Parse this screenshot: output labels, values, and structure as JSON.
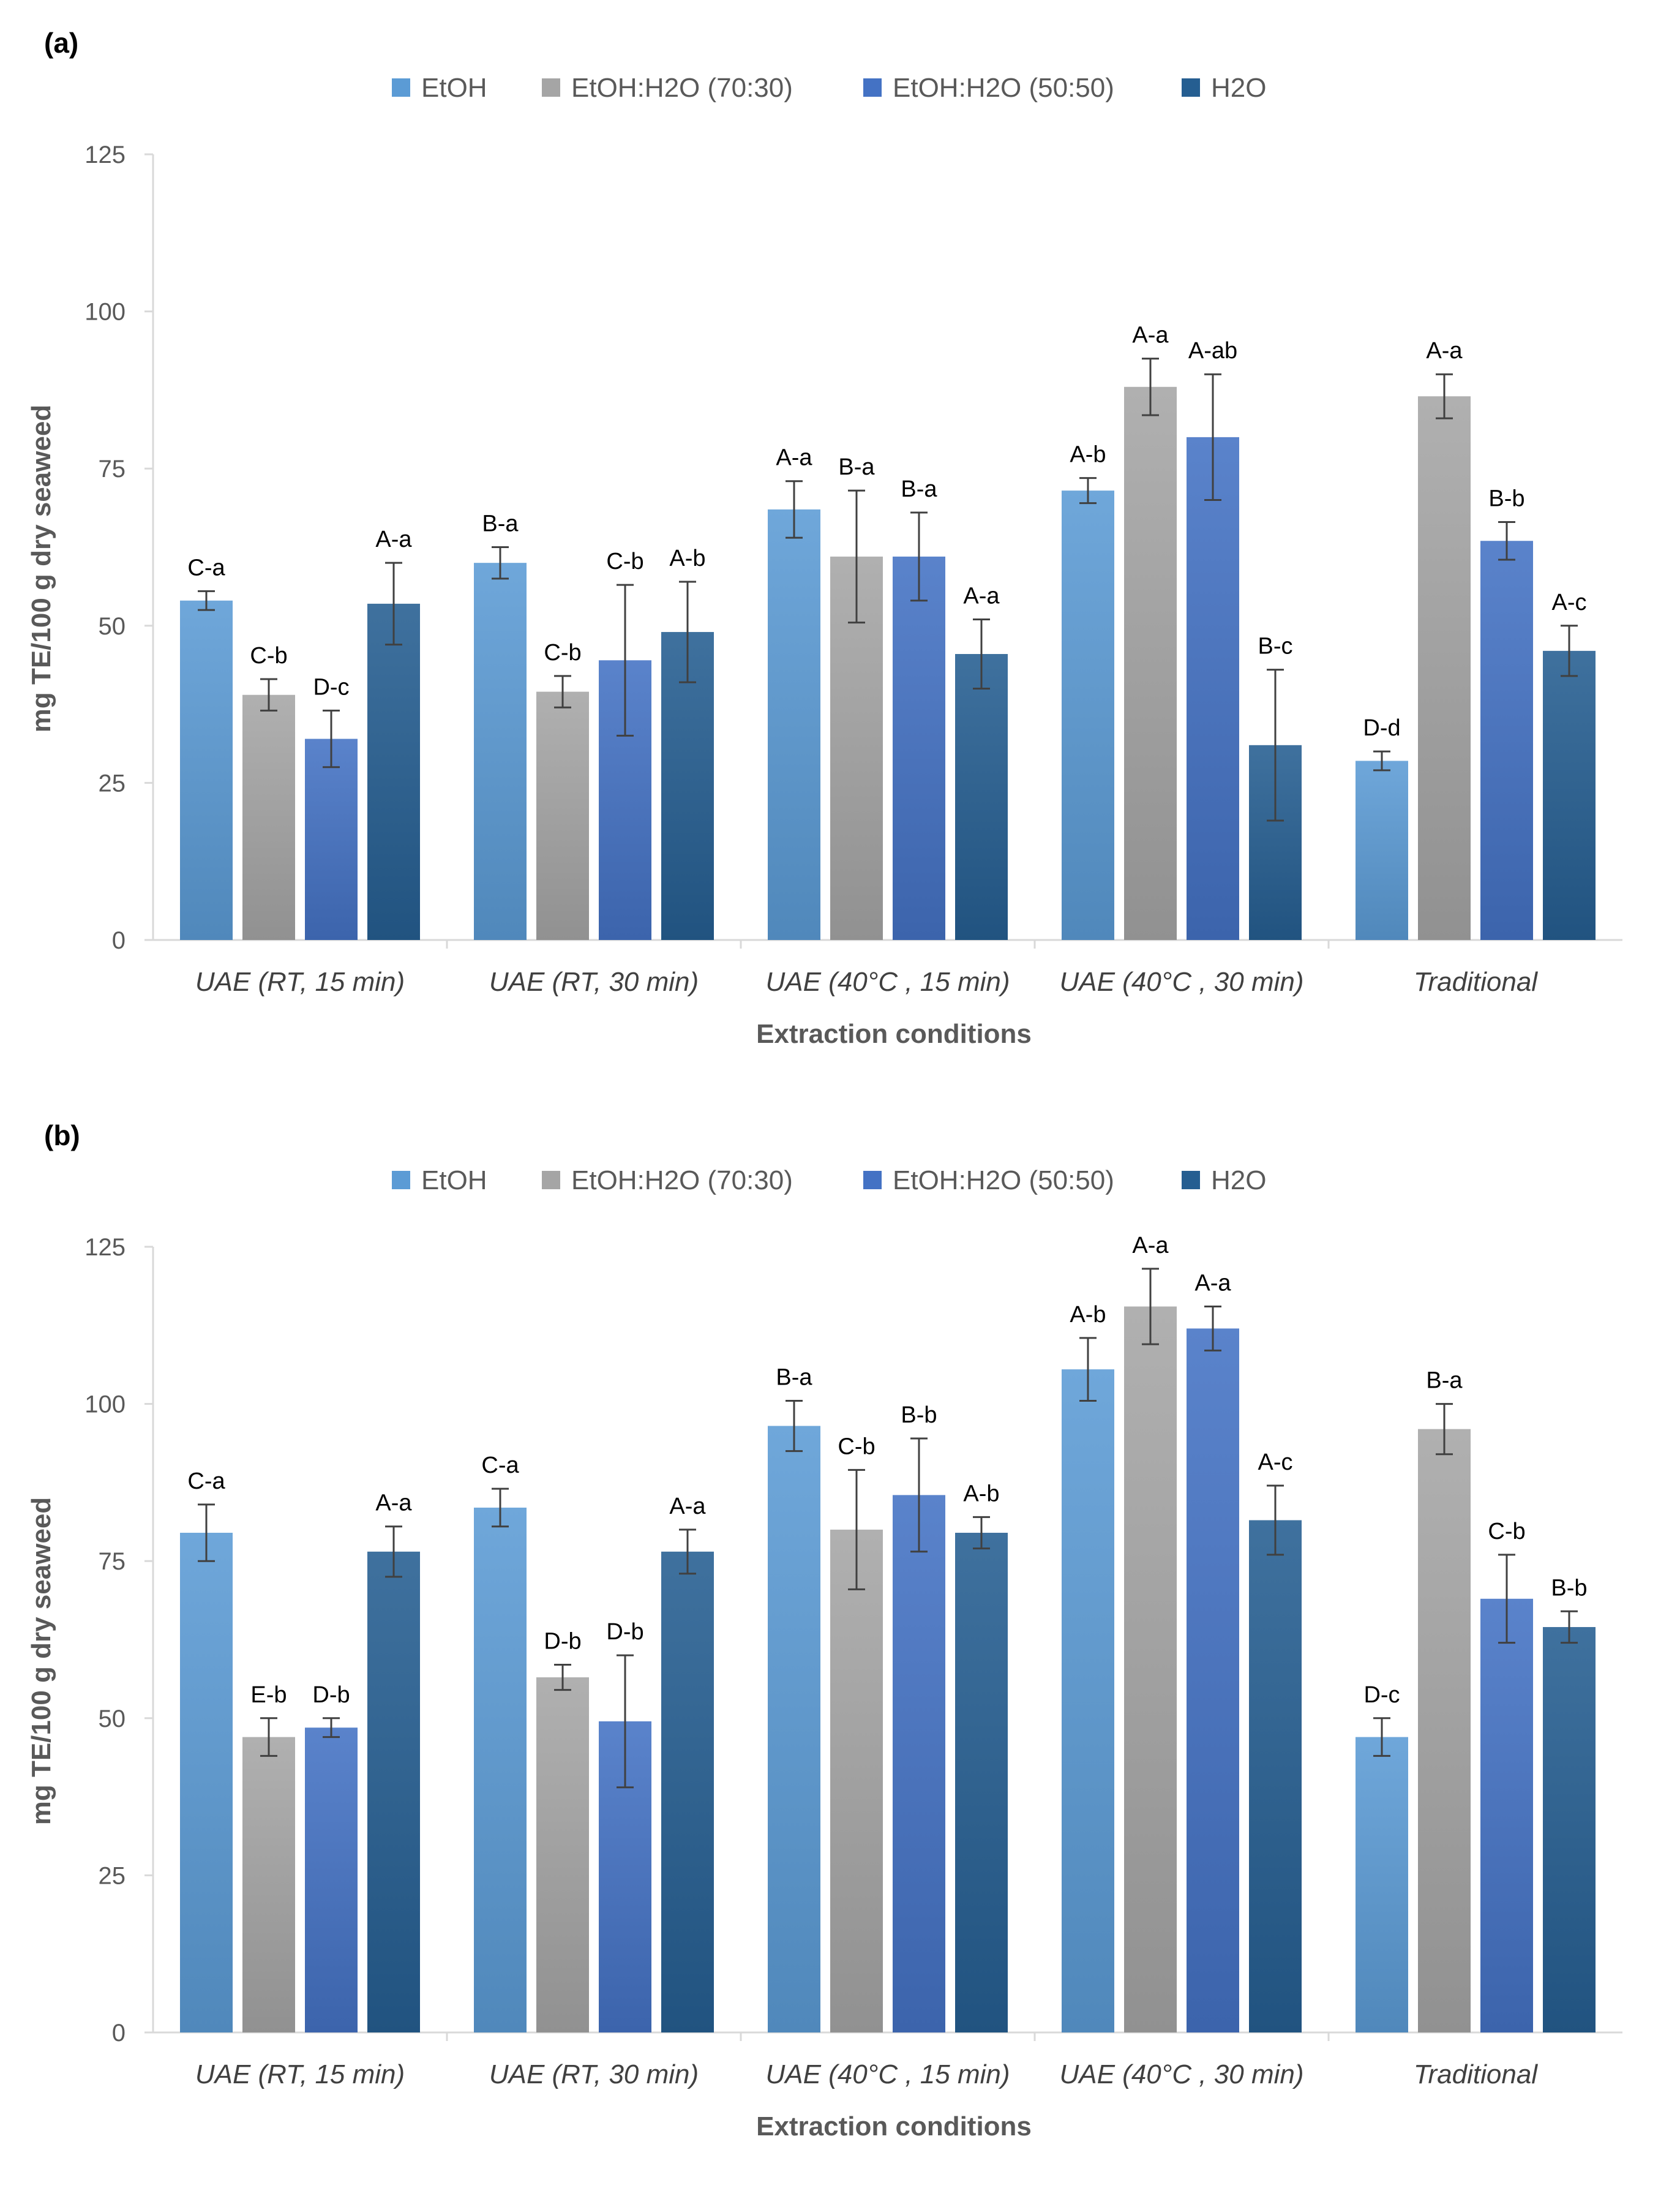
{
  "chart_data": [
    {
      "type": "bar",
      "panel_label": "(a)",
      "categories": [
        "UAE (RT, 15 min)",
        "UAE (RT, 30 min)",
        "UAE (40°C , 15 min)",
        "UAE (40°C , 30 min)",
        "Traditional"
      ],
      "series": [
        {
          "name": "EtOH",
          "color": "#5b9bd5",
          "values": [
            54,
            60,
            68.5,
            71.5,
            28.5
          ],
          "errors": [
            1.5,
            2.5,
            4.5,
            2,
            1.5
          ],
          "labels": [
            "C-a",
            "B-a",
            "A-a",
            "A-b",
            "D-d"
          ]
        },
        {
          "name": "EtOH:H2O (70:30)",
          "color": "#a5a5a5",
          "values": [
            39,
            39.5,
            61,
            88,
            86.5
          ],
          "errors": [
            2.5,
            2.5,
            10.5,
            4.5,
            3.5
          ],
          "labels": [
            "C-b",
            "C-b",
            "B-a",
            "A-a",
            "A-a"
          ]
        },
        {
          "name": "EtOH:H2O (50:50)",
          "color": "#4472c4",
          "values": [
            32,
            44.5,
            61,
            80,
            63.5
          ],
          "errors": [
            4.5,
            12,
            7,
            10,
            3
          ],
          "labels": [
            "D-c",
            "C-b",
            "B-a",
            "A-ab",
            "B-b"
          ]
        },
        {
          "name": "H2O",
          "color": "#255e91",
          "values": [
            53.5,
            49,
            45.5,
            31,
            46
          ],
          "errors": [
            6.5,
            8,
            5.5,
            12,
            4
          ],
          "labels": [
            "A-a",
            "A-b",
            "A-a",
            "B-c",
            "A-c"
          ]
        }
      ],
      "xlabel": "Extraction conditions",
      "ylabel": "mg TE/100 g dry seaweed",
      "yticks": [
        "0",
        "25",
        "50",
        "75",
        "100",
        "125"
      ],
      "ylim": [
        0,
        125
      ],
      "legend": "top-center",
      "grid": false
    },
    {
      "type": "bar",
      "panel_label": "(b)",
      "categories": [
        "UAE (RT, 15 min)",
        "UAE (RT, 30 min)",
        "UAE (40°C , 15 min)",
        "UAE (40°C , 30 min)",
        "Traditional"
      ],
      "series": [
        {
          "name": "EtOH",
          "color": "#5b9bd5",
          "values": [
            79.5,
            83.5,
            96.5,
            105.5,
            47
          ],
          "errors": [
            4.5,
            3,
            4,
            5,
            3
          ],
          "labels": [
            "C-a",
            "C-a",
            "B-a",
            "A-b",
            "D-c"
          ]
        },
        {
          "name": "EtOH:H2O (70:30)",
          "color": "#a5a5a5",
          "values": [
            47,
            56.5,
            80,
            115.5,
            96
          ],
          "errors": [
            3,
            2,
            9.5,
            6,
            4
          ],
          "labels": [
            "E-b",
            "D-b",
            "C-b",
            "A-a",
            "B-a"
          ]
        },
        {
          "name": "EtOH:H2O (50:50)",
          "color": "#4472c4",
          "values": [
            48.5,
            49.5,
            85.5,
            112,
            69
          ],
          "errors": [
            1.5,
            10.5,
            9,
            3.5,
            7
          ],
          "labels": [
            "D-b",
            "D-b",
            "B-b",
            "A-a",
            "C-b"
          ]
        },
        {
          "name": "H2O",
          "color": "#255e91",
          "values": [
            76.5,
            76.5,
            79.5,
            81.5,
            64.5
          ],
          "errors": [
            4,
            3.5,
            2.5,
            5.5,
            2.5
          ],
          "labels": [
            "A-a",
            "A-a",
            "A-b",
            "A-c",
            "B-b"
          ]
        }
      ],
      "xlabel": "Extraction conditions",
      "ylabel": "mg TE/100 g dry seaweed",
      "yticks": [
        "0",
        "25",
        "50",
        "75",
        "100",
        "125"
      ],
      "ylim": [
        0,
        125
      ],
      "legend": "top-center",
      "grid": false
    }
  ]
}
